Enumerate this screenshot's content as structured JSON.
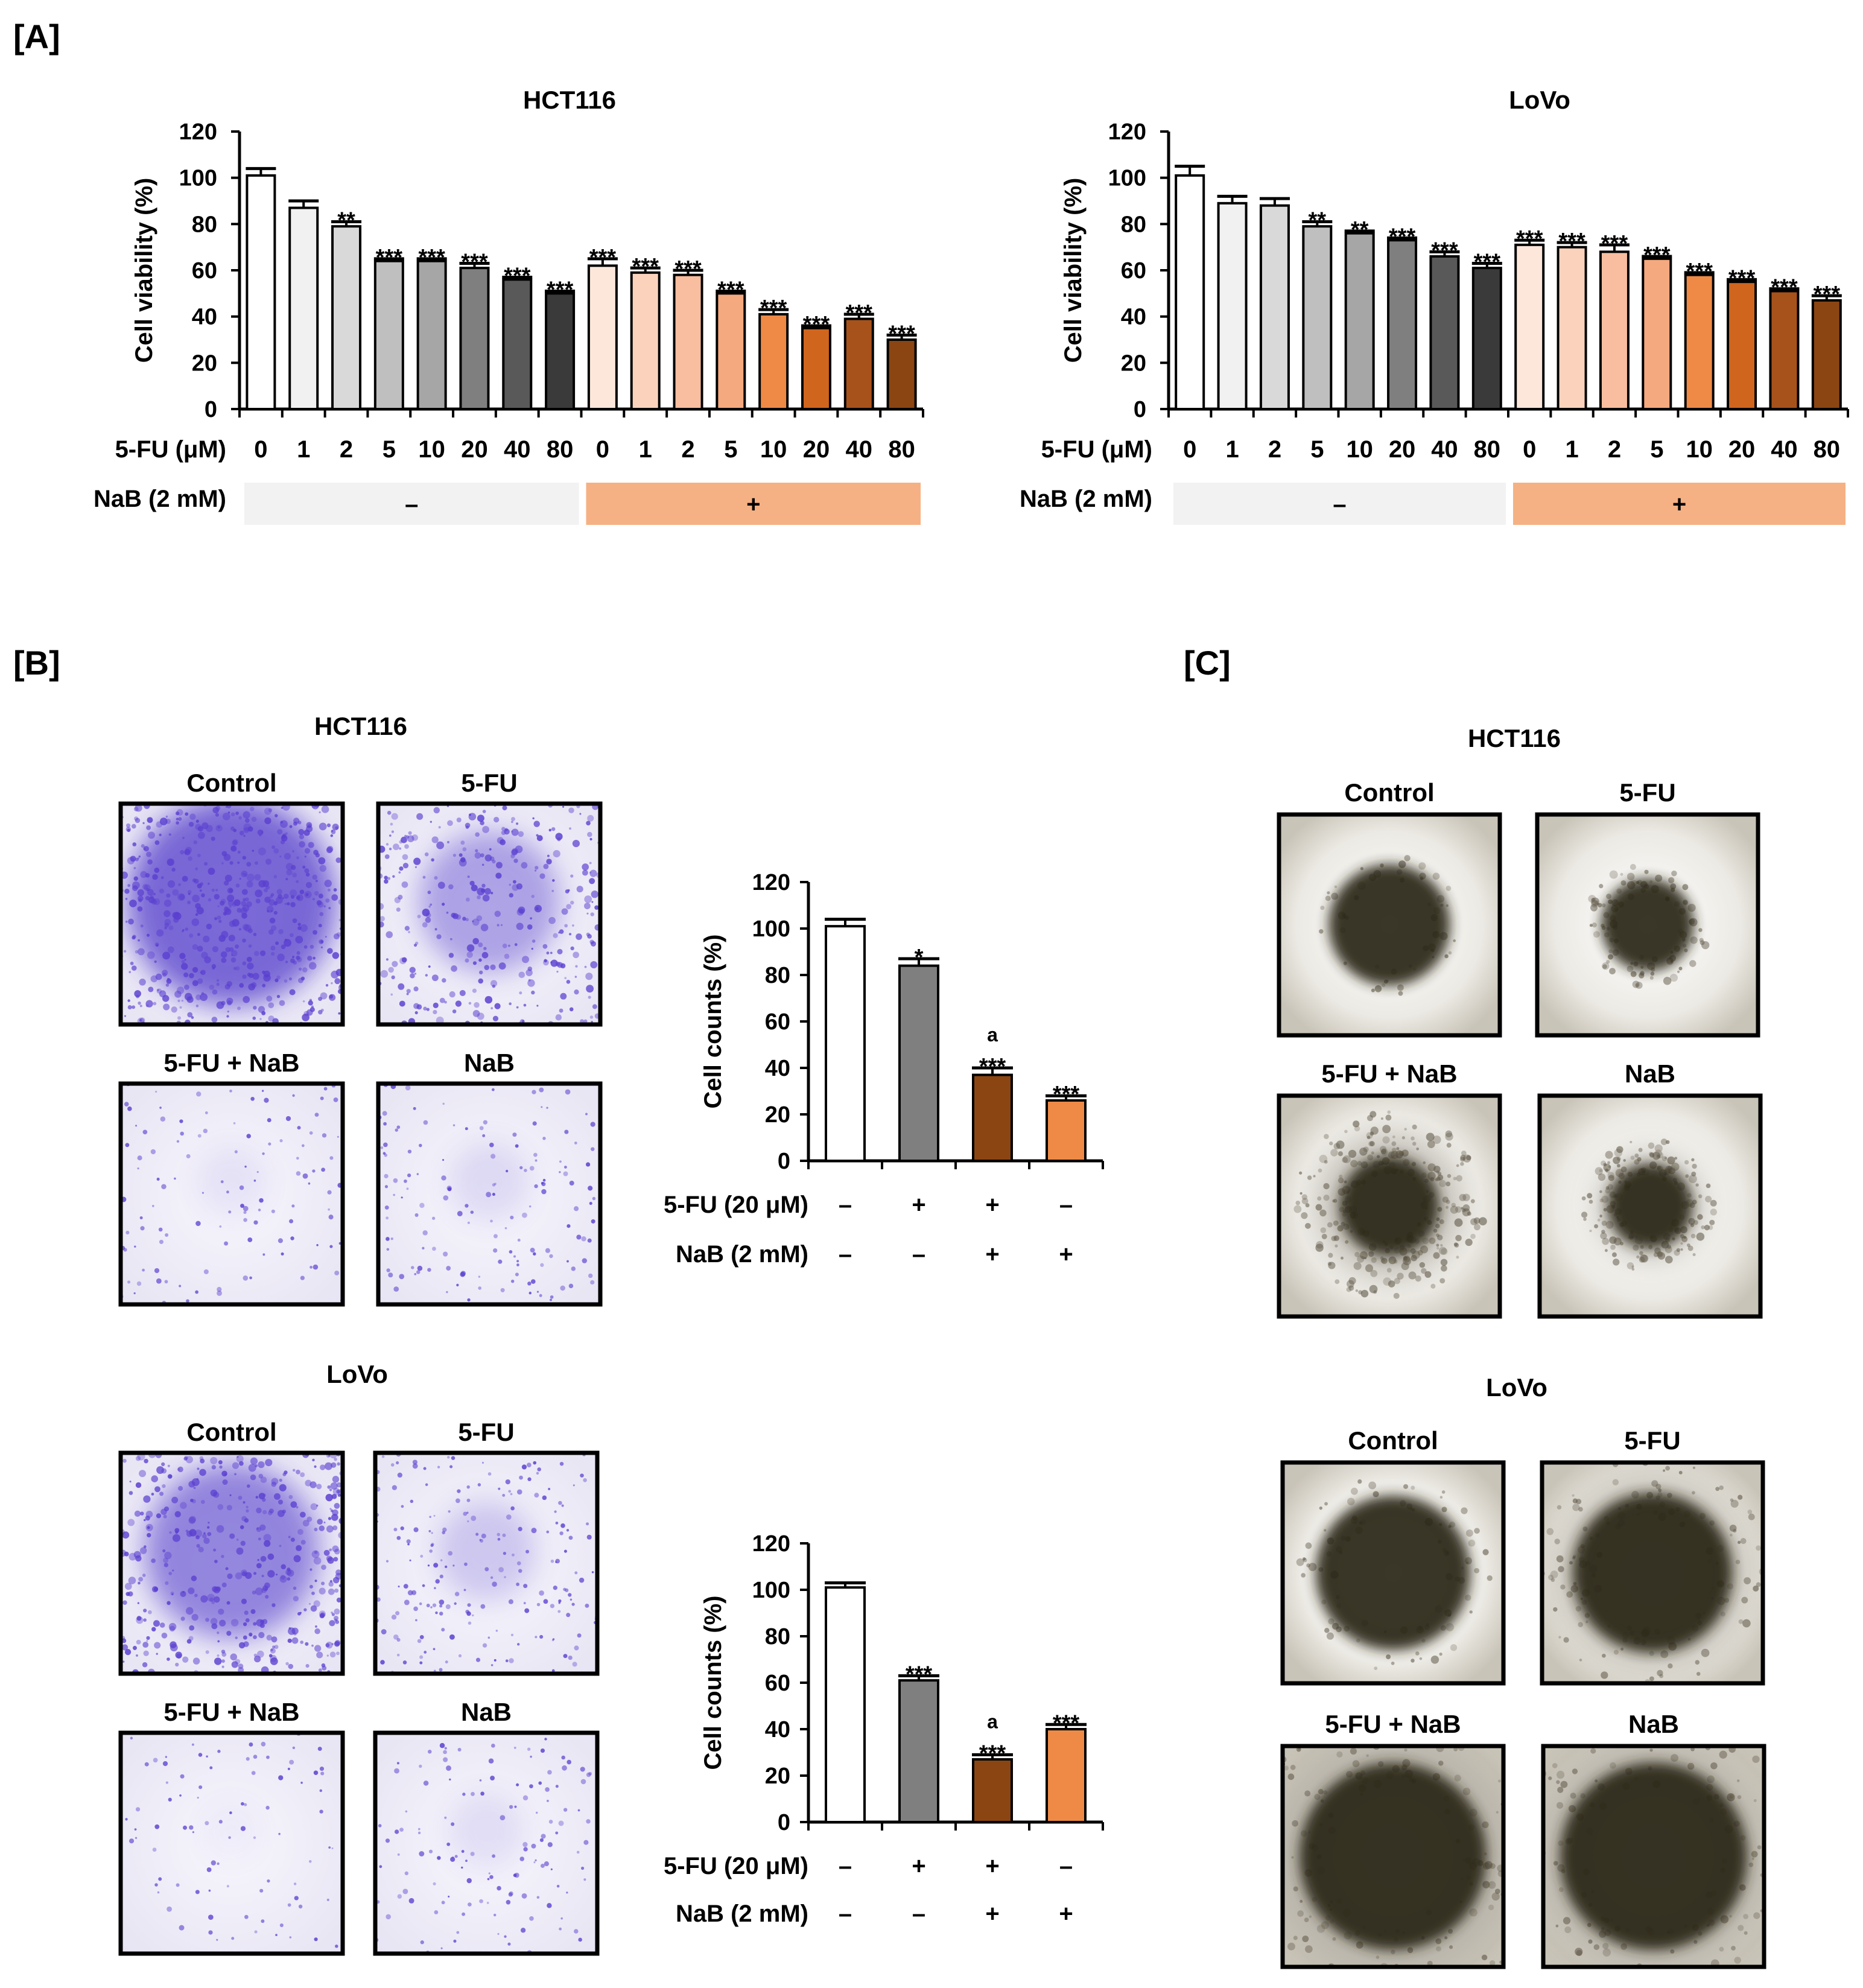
{
  "panels": {
    "A": {
      "label": "[A]"
    },
    "B": {
      "label": "[B]",
      "hct_title": "HCT116",
      "lovo_title": "LoVo"
    },
    "C": {
      "label": "[C]",
      "hct_title": "HCT116",
      "lovo_title": "LoVo"
    }
  },
  "micrographs": {
    "B_hct": [
      {
        "title": "Control",
        "kind": "crystal",
        "stain": 0.95
      },
      {
        "title": "5-FU",
        "kind": "crystal",
        "stain": 0.55
      },
      {
        "title": "5-FU + NaB",
        "kind": "crystal",
        "stain": 0.12
      },
      {
        "title": "NaB",
        "kind": "crystal",
        "stain": 0.18
      }
    ],
    "B_lovo": [
      {
        "title": "Control",
        "kind": "crystal",
        "stain": 0.75
      },
      {
        "title": "5-FU",
        "kind": "crystal",
        "stain": 0.3
      },
      {
        "title": "5-FU + NaB",
        "kind": "crystal",
        "stain": 0.06
      },
      {
        "title": "NaB",
        "kind": "crystal",
        "stain": 0.15
      }
    ],
    "C_hct": [
      {
        "title": "Control",
        "kind": "spheroid",
        "size": 0.55,
        "spread": 0.05
      },
      {
        "title": "5-FU",
        "kind": "spheroid",
        "size": 0.42,
        "spread": 0.25
      },
      {
        "title": "5-FU + NaB",
        "kind": "spheroid",
        "size": 0.45,
        "spread": 0.9
      },
      {
        "title": "NaB",
        "kind": "spheroid",
        "size": 0.38,
        "spread": 0.55
      }
    ],
    "C_lovo": [
      {
        "title": "Control",
        "kind": "spheroid",
        "size": 0.7,
        "spread": 0.2
      },
      {
        "title": "5-FU",
        "kind": "spheroid",
        "size": 0.72,
        "spread": 0.4
      },
      {
        "title": "5-FU + NaB",
        "kind": "spheroid",
        "size": 0.85,
        "spread": 0.6
      },
      {
        "title": "NaB",
        "kind": "spheroid",
        "size": 0.85,
        "spread": 0.5
      }
    ]
  },
  "chart_data": [
    {
      "id": "A_hct116",
      "type": "bar",
      "title": "HCT116",
      "ylabel": "Cell viability (%)",
      "ylim": [
        0,
        120
      ],
      "yticks": [
        0,
        20,
        40,
        60,
        80,
        100,
        120
      ],
      "row_labels": [
        "5-FU (μM)",
        "NaB (2 mM)"
      ],
      "categories": [
        "0",
        "1",
        "2",
        "5",
        "10",
        "20",
        "40",
        "80",
        "0",
        "1",
        "2",
        "5",
        "10",
        "20",
        "40",
        "80"
      ],
      "values": [
        101,
        87,
        79,
        64,
        64,
        61,
        56,
        50,
        62,
        59,
        58,
        50,
        41,
        35,
        39,
        30
      ],
      "errors": [
        3,
        3,
        2,
        1,
        1,
        2,
        1,
        1,
        3,
        2,
        2,
        1,
        2,
        1,
        2,
        2
      ],
      "significance": [
        "",
        "",
        "**",
        "***",
        "***",
        "***",
        "***",
        "***",
        "***",
        "***",
        "***",
        "***",
        "***",
        "***",
        "***",
        "***"
      ],
      "colors": [
        "#ffffff",
        "#f1f1f1",
        "#d9d9d9",
        "#bfbfbf",
        "#a6a6a6",
        "#7f7f7f",
        "#595959",
        "#3a3a3a",
        "#fde7db",
        "#fbd3bd",
        "#f8be9f",
        "#f5a97f",
        "#ee8a46",
        "#d0651e",
        "#a8521b",
        "#8b4513"
      ],
      "groups": [
        {
          "symbol": "–",
          "from": 0,
          "to": 7,
          "color": "#f2f2f2"
        },
        {
          "symbol": "+",
          "from": 8,
          "to": 15,
          "color": "#f5b183"
        }
      ]
    },
    {
      "id": "A_lovo",
      "type": "bar",
      "title": "LoVo",
      "ylabel": "Cell viability (%)",
      "ylim": [
        0,
        120
      ],
      "yticks": [
        0,
        20,
        40,
        60,
        80,
        100,
        120
      ],
      "row_labels": [
        "5-FU (μM)",
        "NaB (2 mM)"
      ],
      "categories": [
        "0",
        "1",
        "2",
        "5",
        "10",
        "20",
        "40",
        "80",
        "0",
        "1",
        "2",
        "5",
        "10",
        "20",
        "40",
        "80"
      ],
      "values": [
        101,
        89,
        88,
        79,
        76,
        73,
        66,
        61,
        71,
        70,
        68,
        65,
        58,
        55,
        51,
        47
      ],
      "errors": [
        4,
        3,
        3,
        2,
        1,
        1,
        2,
        2,
        2,
        2,
        3,
        1,
        1,
        1,
        1,
        2
      ],
      "significance": [
        "",
        "",
        "",
        "**",
        "**",
        "***",
        "***",
        "***",
        "***",
        "***",
        "***",
        "***",
        "***",
        "***",
        "***",
        "***"
      ],
      "colors": [
        "#ffffff",
        "#f1f1f1",
        "#d9d9d9",
        "#bfbfbf",
        "#a6a6a6",
        "#7f7f7f",
        "#595959",
        "#3a3a3a",
        "#fde7db",
        "#fbd3bd",
        "#f8be9f",
        "#f5a97f",
        "#ee8a46",
        "#d0651e",
        "#a8521b",
        "#8b4513"
      ],
      "groups": [
        {
          "symbol": "–",
          "from": 0,
          "to": 7,
          "color": "#f2f2f2"
        },
        {
          "symbol": "+",
          "from": 8,
          "to": 15,
          "color": "#f5b183"
        }
      ]
    },
    {
      "id": "B_hct116",
      "type": "bar",
      "title": "",
      "ylabel": "Cell counts (%)",
      "ylim": [
        0,
        120
      ],
      "yticks": [
        0,
        20,
        40,
        60,
        80,
        100,
        120
      ],
      "row_labels": [
        "5-FU (20 μM)",
        "NaB (2 mM)"
      ],
      "rows": [
        [
          "–",
          "+",
          "+",
          "–"
        ],
        [
          "–",
          "–",
          "+",
          "+"
        ]
      ],
      "values": [
        101,
        84,
        37,
        26
      ],
      "errors": [
        3,
        3,
        3,
        2
      ],
      "significance": [
        "",
        "*",
        "***",
        "***"
      ],
      "annotation": [
        "",
        "",
        "a",
        ""
      ],
      "colors": [
        "#ffffff",
        "#7f7f7f",
        "#8b4513",
        "#ee8a46"
      ]
    },
    {
      "id": "B_lovo",
      "type": "bar",
      "title": "",
      "ylabel": "Cell counts (%)",
      "ylim": [
        0,
        120
      ],
      "yticks": [
        0,
        20,
        40,
        60,
        80,
        100,
        120
      ],
      "row_labels": [
        "5-FU (20 μM)",
        "NaB (2 mM)"
      ],
      "rows": [
        [
          "–",
          "+",
          "+",
          "–"
        ],
        [
          "–",
          "–",
          "+",
          "+"
        ]
      ],
      "values": [
        101,
        61,
        27,
        40
      ],
      "errors": [
        2,
        2,
        2,
        2
      ],
      "significance": [
        "",
        "***",
        "***",
        "***"
      ],
      "annotation": [
        "",
        "",
        "a",
        ""
      ],
      "colors": [
        "#ffffff",
        "#7f7f7f",
        "#8b4513",
        "#ee8a46"
      ]
    }
  ]
}
